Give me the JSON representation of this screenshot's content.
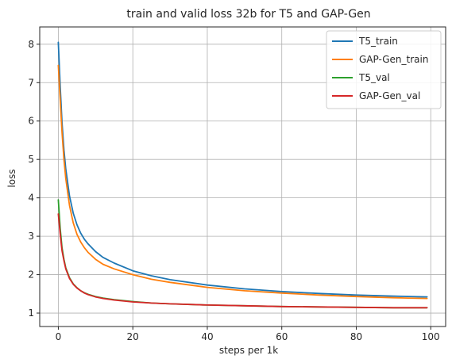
{
  "chart_data": {
    "type": "line",
    "title": "train and valid loss 32b for T5 and GAP-Gen",
    "xlabel": "steps per 1k",
    "ylabel": "loss",
    "xlim": [
      -5,
      104
    ],
    "ylim": [
      0.65,
      8.45
    ],
    "x_ticks": [
      0,
      20,
      40,
      60,
      80,
      100
    ],
    "y_ticks": [
      1,
      2,
      3,
      4,
      5,
      6,
      7,
      8
    ],
    "grid": true,
    "legend_position": "upper right",
    "x": [
      0,
      0.5,
      1,
      1.5,
      2,
      3,
      4,
      5,
      6,
      7,
      8,
      10,
      12,
      15,
      20,
      25,
      30,
      40,
      50,
      60,
      70,
      80,
      90,
      99
    ],
    "series": [
      {
        "name": "T5_train",
        "color": "#1f77b4",
        "values": [
          8.05,
          6.9,
          5.95,
          5.25,
          4.75,
          4.05,
          3.6,
          3.3,
          3.08,
          2.92,
          2.8,
          2.6,
          2.45,
          2.3,
          2.1,
          1.97,
          1.87,
          1.73,
          1.63,
          1.56,
          1.51,
          1.47,
          1.44,
          1.42
        ]
      },
      {
        "name": "GAP-Gen_train",
        "color": "#ff7f0e",
        "values": [
          7.45,
          6.55,
          5.7,
          5.0,
          4.5,
          3.8,
          3.35,
          3.05,
          2.85,
          2.7,
          2.58,
          2.4,
          2.27,
          2.15,
          2.0,
          1.88,
          1.8,
          1.67,
          1.58,
          1.52,
          1.47,
          1.43,
          1.4,
          1.38
        ]
      },
      {
        "name": "T5_val",
        "color": "#2ca02c",
        "values": [
          3.95,
          3.2,
          2.7,
          2.4,
          2.18,
          1.92,
          1.76,
          1.66,
          1.58,
          1.53,
          1.49,
          1.43,
          1.39,
          1.35,
          1.3,
          1.26,
          1.24,
          1.21,
          1.19,
          1.17,
          1.16,
          1.15,
          1.14,
          1.14
        ]
      },
      {
        "name": "GAP-Gen_val",
        "color": "#d62728",
        "values": [
          3.58,
          3.05,
          2.62,
          2.36,
          2.15,
          1.9,
          1.75,
          1.65,
          1.58,
          1.52,
          1.48,
          1.42,
          1.38,
          1.34,
          1.29,
          1.26,
          1.24,
          1.21,
          1.19,
          1.17,
          1.16,
          1.15,
          1.14,
          1.14
        ]
      }
    ]
  }
}
